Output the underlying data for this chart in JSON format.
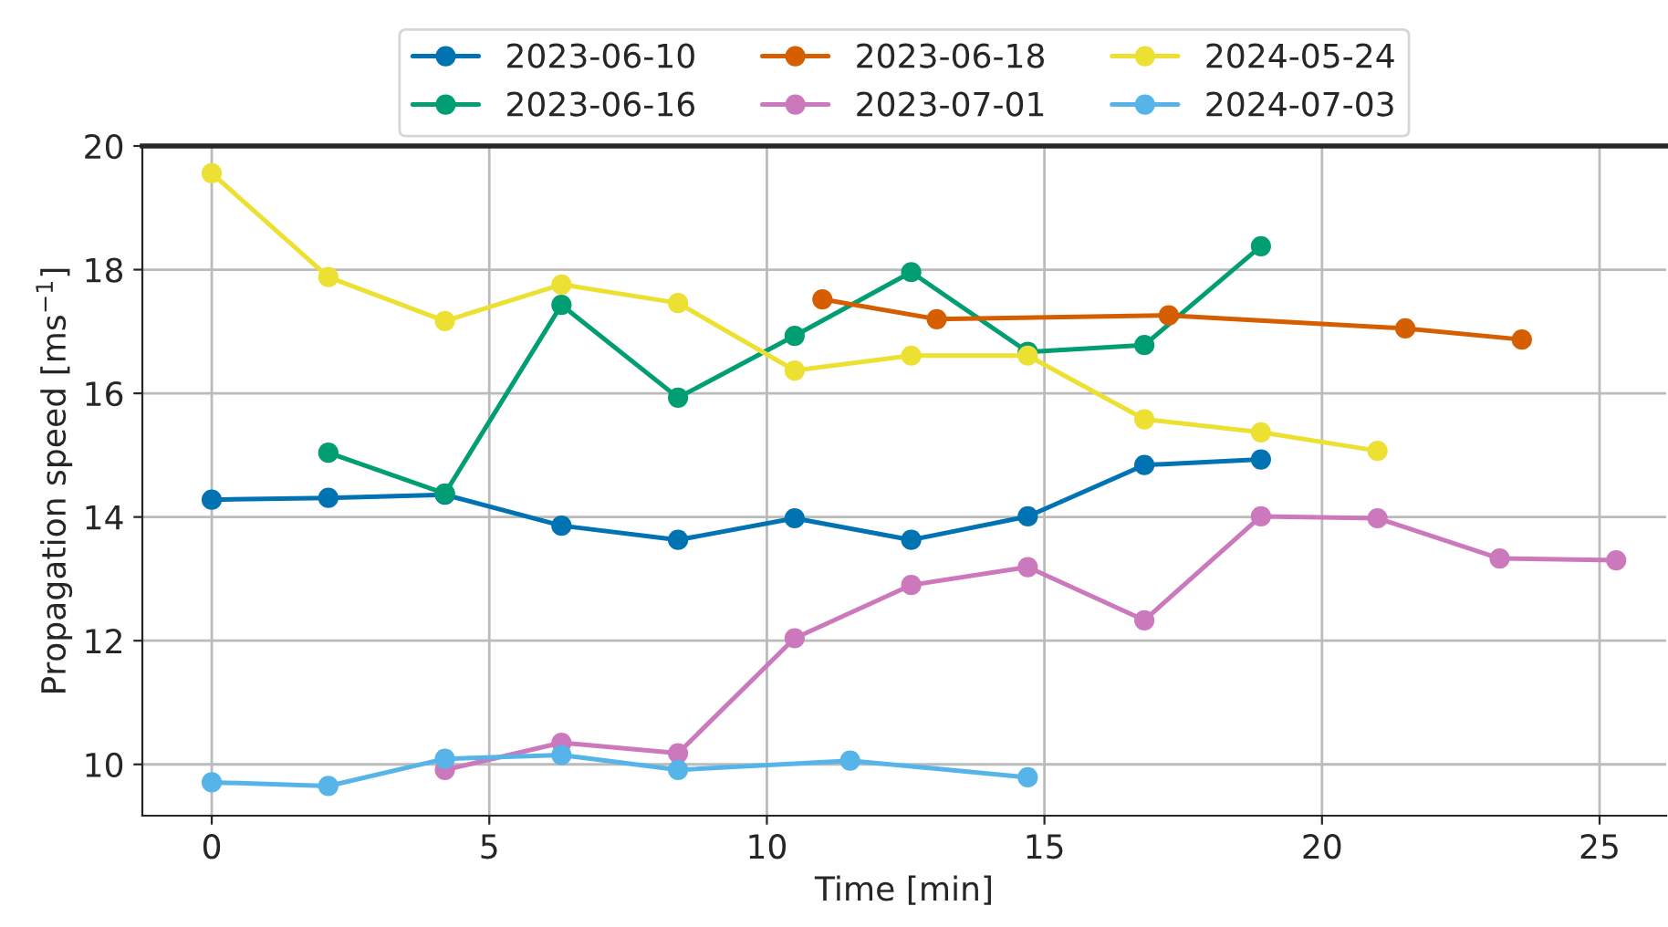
{
  "chart_data": {
    "type": "line",
    "xlabel": "Time [min]",
    "ylabel": "Propagation speed [ms$^{−1}$]",
    "xlim": [
      -1.25,
      26.2
    ],
    "ylim": [
      9.17,
      20
    ],
    "xticks": [
      0,
      5,
      10,
      15,
      20,
      25
    ],
    "yticks": [
      10,
      12,
      14,
      16,
      18,
      20
    ],
    "grid": true,
    "legend": "top",
    "marker": "circle",
    "line_style": "solid",
    "series": [
      {
        "name": "2023-06-10",
        "color": "#0173b2",
        "x": [
          0,
          2.1,
          4.2,
          6.3,
          8.4,
          10.5,
          12.6,
          14.7,
          16.8,
          18.9
        ],
        "values": [
          14.28,
          14.31,
          14.36,
          13.86,
          13.63,
          13.98,
          13.63,
          14.01,
          14.84,
          14.93
        ]
      },
      {
        "name": "2023-06-16",
        "color": "#029e73",
        "x": [
          2.1,
          4.2,
          6.3,
          8.4,
          10.5,
          12.6,
          14.7,
          16.8,
          18.9
        ],
        "values": [
          15.04,
          14.38,
          17.43,
          15.93,
          16.93,
          17.96,
          16.67,
          16.78,
          18.38
        ]
      },
      {
        "name": "2023-06-18",
        "color": "#d55e00",
        "x": [
          11.0,
          13.06,
          17.24,
          21.5,
          23.6
        ],
        "values": [
          17.52,
          17.2,
          17.26,
          17.05,
          16.87
        ]
      },
      {
        "name": "2023-07-01",
        "color": "#cc78bc",
        "x": [
          4.2,
          6.3,
          8.4,
          10.5,
          12.6,
          14.7,
          16.8,
          18.9,
          21.0,
          23.2,
          25.3
        ],
        "values": [
          9.91,
          10.35,
          10.18,
          12.04,
          12.9,
          13.19,
          12.33,
          14.01,
          13.98,
          13.33,
          13.3
        ]
      },
      {
        "name": "2024-05-24",
        "color": "#ece133",
        "x": [
          0,
          2.1,
          4.2,
          6.3,
          8.4,
          10.5,
          12.6,
          14.7,
          16.8,
          18.9,
          21.0
        ],
        "values": [
          19.56,
          17.88,
          17.17,
          17.76,
          17.46,
          16.37,
          16.61,
          16.61,
          15.58,
          15.37,
          15.07
        ]
      },
      {
        "name": "2024-07-03",
        "color": "#56b4e9",
        "x": [
          0,
          2.1,
          4.2,
          6.3,
          8.4,
          11.5,
          14.7
        ],
        "values": [
          9.71,
          9.65,
          10.09,
          10.15,
          9.91,
          10.06,
          9.79
        ]
      }
    ]
  }
}
